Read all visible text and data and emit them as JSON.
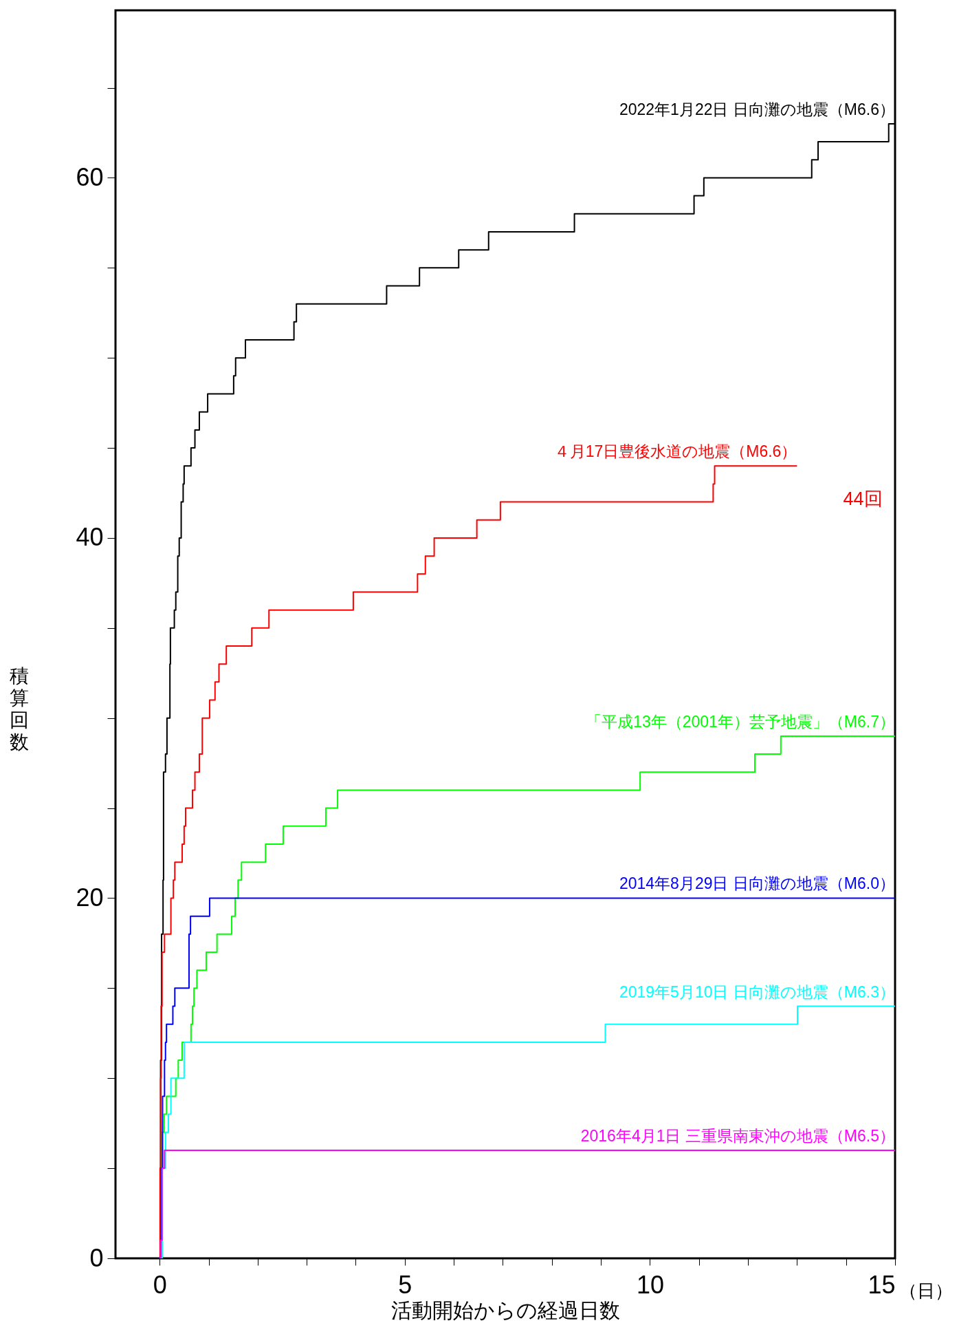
{
  "chart_data": {
    "type": "step",
    "xlabel": "活動開始からの経過日数",
    "ylabel": "積算回数",
    "xlim": [
      -0.9,
      15
    ],
    "ylim": [
      0,
      69.3
    ],
    "xticks": [
      0,
      {
        "value": 1,
        "label": null
      },
      {
        "value": 2,
        "label": null
      },
      {
        "value": 3,
        "label": null
      },
      {
        "value": 4,
        "label": null
      },
      5,
      {
        "value": 6,
        "label": null
      },
      {
        "value": 7,
        "label": null
      },
      {
        "value": 8,
        "label": null
      },
      {
        "value": 9,
        "label": null
      },
      10,
      {
        "value": 11,
        "label": null
      },
      {
        "value": 12,
        "label": null
      },
      {
        "value": 13,
        "label": null
      },
      {
        "value": 14,
        "label": null
      },
      15
    ],
    "yticks": [
      0,
      {
        "value": 5,
        "label": null
      },
      {
        "value": 10,
        "label": null
      },
      {
        "value": 15,
        "label": null
      },
      20,
      {
        "value": 25,
        "label": null
      },
      {
        "value": 30,
        "label": null
      },
      {
        "value": 35,
        "label": null
      },
      40,
      {
        "value": 45,
        "label": null
      },
      {
        "value": 50,
        "label": null
      },
      {
        "value": 55,
        "label": null
      },
      60,
      {
        "value": 65,
        "label": null
      }
    ],
    "grid": false,
    "annotations": [
      "44回",
      "（日）"
    ],
    "series": [
      {
        "name": "2022年1月22日 日向灘の地震（M6.6）",
        "color": "#000000",
        "x": [
          0,
          0.01,
          0.02,
          0.04,
          0.07,
          0.08,
          0.12,
          0.15,
          0.21,
          0.22,
          0.3,
          0.33,
          0.37,
          0.4,
          0.44,
          0.48,
          0.5,
          0.64,
          0.72,
          0.81,
          0.98,
          1.51,
          1.55,
          1.75,
          2.74,
          2.79,
          4.63,
          5.3,
          6.1,
          6.71,
          8.46,
          10.9,
          11.1,
          13.3,
          13.43,
          14.87,
          15
        ],
        "values": [
          0,
          5,
          11,
          18,
          21,
          27,
          28,
          30,
          33,
          35,
          36,
          37,
          39,
          40,
          42,
          43,
          44,
          45,
          46,
          47,
          48,
          49,
          50,
          51,
          52,
          53,
          54,
          55,
          56,
          57,
          58,
          59,
          60,
          61,
          62,
          63,
          63
        ]
      },
      {
        "name": "４月17日豊後水道の地震（M6.6）",
        "color": "#ff0000",
        "x": [
          0,
          0.01,
          0.02,
          0.03,
          0.05,
          0.1,
          0.23,
          0.28,
          0.31,
          0.46,
          0.5,
          0.53,
          0.67,
          0.72,
          0.81,
          0.87,
          1.02,
          1.13,
          1.21,
          1.36,
          1.88,
          2.23,
          3.95,
          5.26,
          5.42,
          5.6,
          6.47,
          6.95,
          11.29,
          11.32,
          13.0
        ],
        "values": [
          0,
          5,
          10,
          14,
          17,
          18,
          20,
          21,
          22,
          23,
          24,
          25,
          26,
          27,
          28,
          30,
          31,
          32,
          33,
          34,
          35,
          36,
          37,
          38,
          39,
          40,
          41,
          42,
          43,
          44,
          44
        ]
      },
      {
        "name": "「平成13年（2001年）芸予地震」（M6.7）",
        "color": "#00ff00",
        "x": [
          0,
          0.05,
          0.09,
          0.14,
          0.33,
          0.38,
          0.46,
          0.64,
          0.67,
          0.7,
          0.76,
          0.95,
          1.17,
          1.47,
          1.54,
          1.6,
          1.67,
          2.16,
          2.52,
          3.39,
          3.63,
          9.8,
          12.14,
          12.67,
          15
        ],
        "values": [
          0,
          7,
          8,
          9,
          10,
          11,
          12,
          13,
          14,
          15,
          16,
          17,
          18,
          19,
          20,
          21,
          22,
          23,
          24,
          25,
          26,
          27,
          28,
          29,
          29
        ]
      },
      {
        "name": "2014年8月29日 日向灘の地震（M6.0）",
        "color": "#0000ff",
        "x": [
          0,
          0.03,
          0.06,
          0.1,
          0.12,
          0.14,
          0.27,
          0.31,
          0.6,
          0.63,
          1.02,
          15
        ],
        "values": [
          0,
          5,
          9,
          11,
          12,
          13,
          14,
          15,
          18,
          19,
          20,
          20
        ]
      },
      {
        "name": "2019年5月10日 日向灘の地震（M6.3）",
        "color": "#00ffff",
        "x": [
          0,
          0.05,
          0.12,
          0.18,
          0.23,
          0.5,
          9.09,
          13.01,
          15
        ],
        "values": [
          0,
          5,
          7,
          8,
          10,
          12,
          13,
          14,
          14
        ]
      },
      {
        "name": "2016年4月1日 三重県南東沖の地震（M6.5）",
        "color": "#ff00ff",
        "x": [
          0,
          0.02,
          0.05,
          0.1,
          15
        ],
        "values": [
          0,
          1,
          5,
          6,
          6
        ]
      }
    ]
  }
}
